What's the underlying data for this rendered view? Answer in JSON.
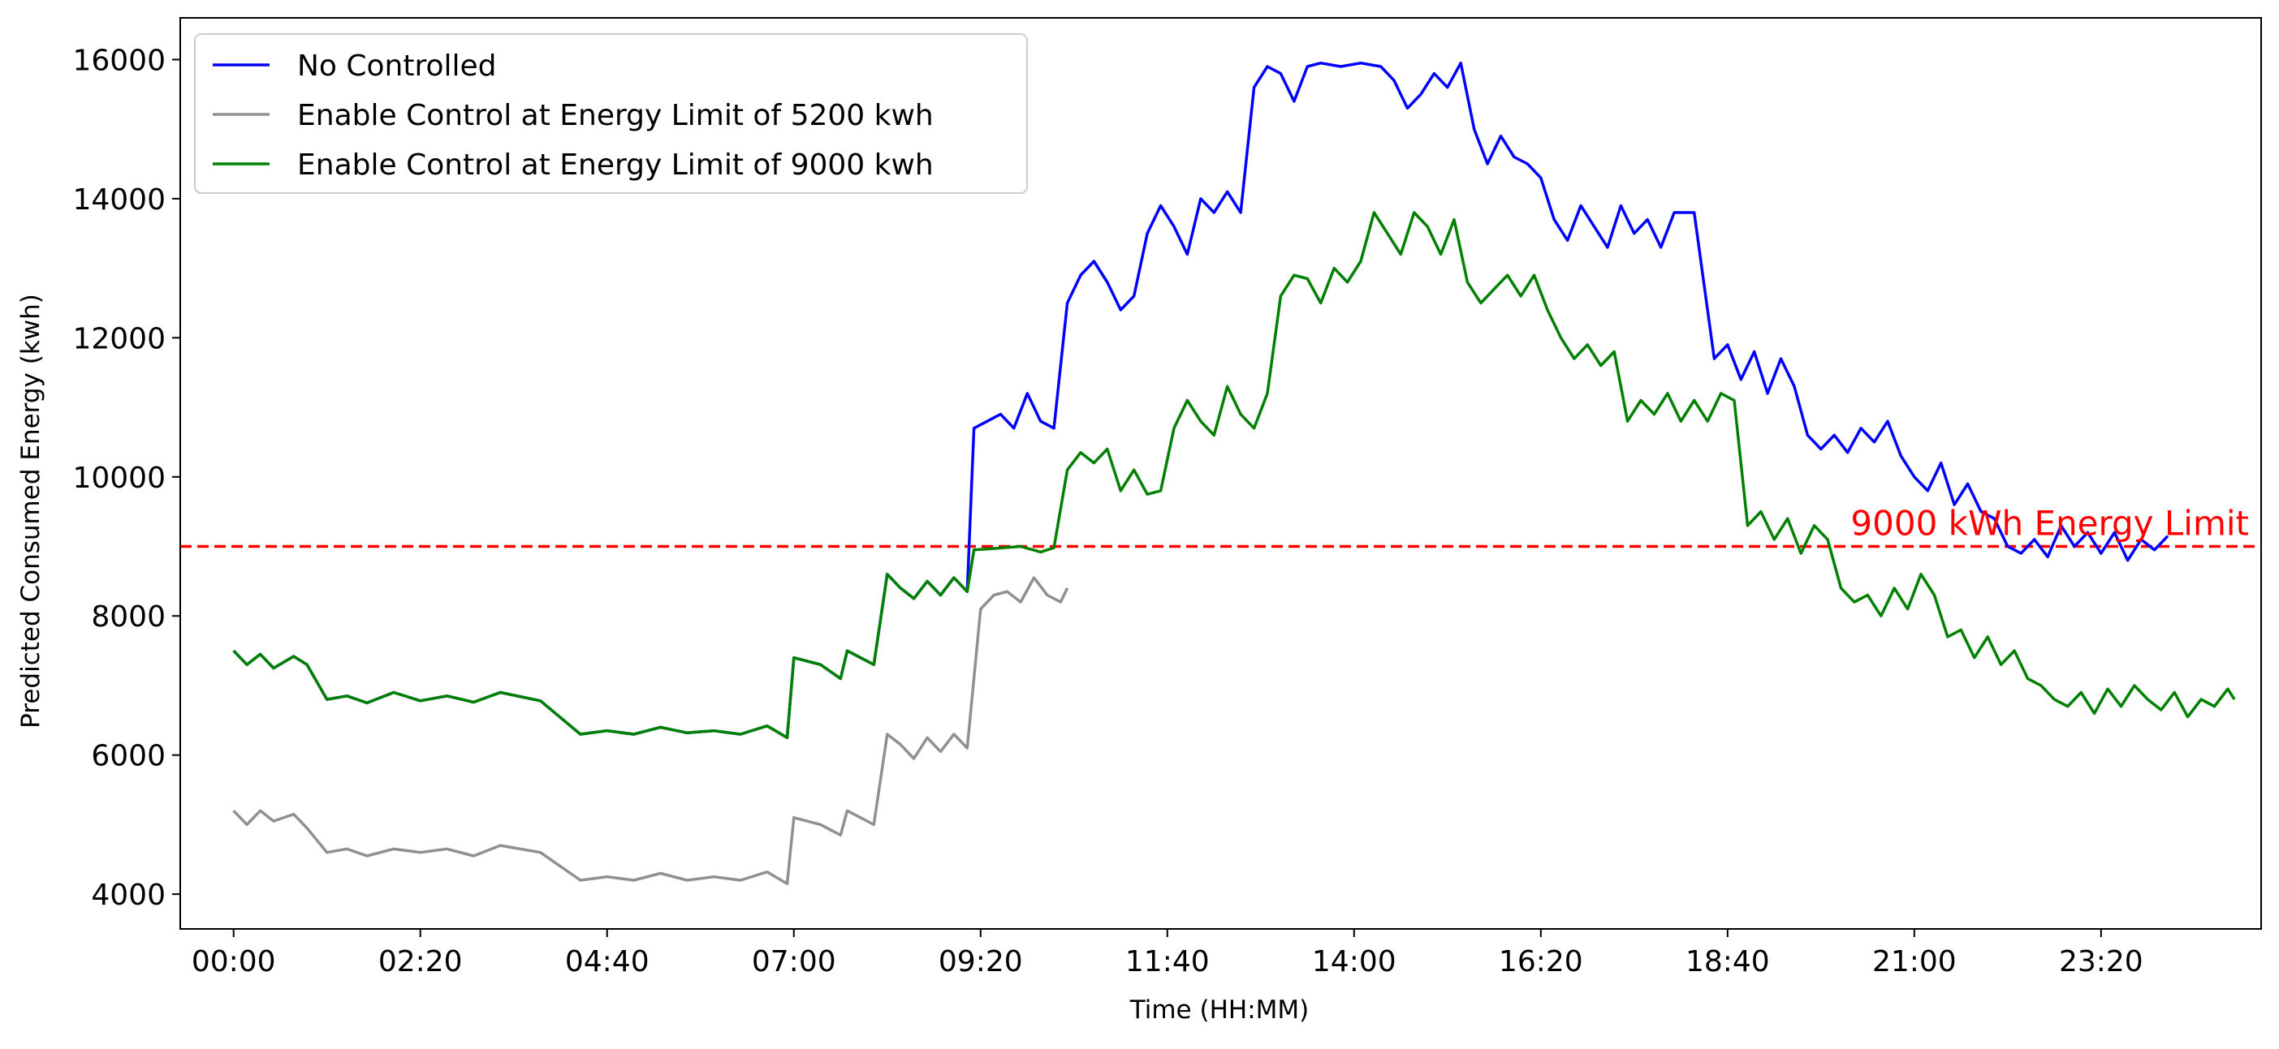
{
  "chart_data": {
    "type": "line",
    "title": "",
    "xlabel": "Time (HH:MM)",
    "ylabel": "Predicted Consumed Energy (kwh)",
    "xlim": [
      -40,
      1520
    ],
    "ylim": [
      3500,
      16600
    ],
    "grid": false,
    "legend_position": "top-left",
    "x_ticks": [
      {
        "value": 0,
        "label": "00:00"
      },
      {
        "value": 140,
        "label": "02:20"
      },
      {
        "value": 280,
        "label": "04:40"
      },
      {
        "value": 420,
        "label": "07:00"
      },
      {
        "value": 560,
        "label": "09:20"
      },
      {
        "value": 700,
        "label": "11:40"
      },
      {
        "value": 840,
        "label": "14:00"
      },
      {
        "value": 980,
        "label": "16:20"
      },
      {
        "value": 1120,
        "label": "18:40"
      },
      {
        "value": 1260,
        "label": "21:00"
      },
      {
        "value": 1400,
        "label": "23:20"
      }
    ],
    "y_ticks": [
      {
        "value": 4000,
        "label": "4000"
      },
      {
        "value": 6000,
        "label": "6000"
      },
      {
        "value": 8000,
        "label": "8000"
      },
      {
        "value": 10000,
        "label": "10000"
      },
      {
        "value": 12000,
        "label": "12000"
      },
      {
        "value": 14000,
        "label": "14000"
      },
      {
        "value": 16000,
        "label": "16000"
      }
    ],
    "limit_line": {
      "y": 9000,
      "color": "#ff0000",
      "style": "dashed",
      "label": "9000 kWh Energy Limit"
    },
    "series": [
      {
        "name": "No Controlled",
        "color": "#0000ff",
        "points": [
          [
            0,
            7500
          ],
          [
            10,
            7300
          ],
          [
            20,
            7450
          ],
          [
            30,
            7250
          ],
          [
            45,
            7420
          ],
          [
            55,
            7300
          ],
          [
            70,
            6800
          ],
          [
            85,
            6850
          ],
          [
            100,
            6750
          ],
          [
            120,
            6900
          ],
          [
            140,
            6780
          ],
          [
            160,
            6850
          ],
          [
            180,
            6760
          ],
          [
            200,
            6900
          ],
          [
            230,
            6780
          ],
          [
            260,
            6300
          ],
          [
            280,
            6350
          ],
          [
            300,
            6300
          ],
          [
            320,
            6400
          ],
          [
            340,
            6320
          ],
          [
            360,
            6350
          ],
          [
            380,
            6300
          ],
          [
            400,
            6420
          ],
          [
            415,
            6250
          ],
          [
            420,
            7400
          ],
          [
            440,
            7300
          ],
          [
            455,
            7100
          ],
          [
            460,
            7500
          ],
          [
            470,
            7400
          ],
          [
            480,
            7300
          ],
          [
            490,
            8600
          ],
          [
            500,
            8400
          ],
          [
            510,
            8250
          ],
          [
            520,
            8500
          ],
          [
            530,
            8300
          ],
          [
            540,
            8550
          ],
          [
            550,
            8350
          ],
          [
            555,
            10700
          ],
          [
            565,
            10800
          ],
          [
            575,
            10900
          ],
          [
            585,
            10700
          ],
          [
            595,
            11200
          ],
          [
            605,
            10800
          ],
          [
            615,
            10700
          ],
          [
            625,
            12500
          ],
          [
            635,
            12900
          ],
          [
            645,
            13100
          ],
          [
            655,
            12800
          ],
          [
            665,
            12400
          ],
          [
            675,
            12600
          ],
          [
            685,
            13500
          ],
          [
            695,
            13900
          ],
          [
            705,
            13600
          ],
          [
            715,
            13200
          ],
          [
            725,
            14000
          ],
          [
            735,
            13800
          ],
          [
            745,
            14100
          ],
          [
            755,
            13800
          ],
          [
            765,
            15600
          ],
          [
            775,
            15900
          ],
          [
            785,
            15800
          ],
          [
            795,
            15400
          ],
          [
            805,
            15900
          ],
          [
            815,
            15950
          ],
          [
            830,
            15900
          ],
          [
            845,
            15950
          ],
          [
            860,
            15900
          ],
          [
            870,
            15700
          ],
          [
            880,
            15300
          ],
          [
            890,
            15500
          ],
          [
            900,
            15800
          ],
          [
            910,
            15600
          ],
          [
            920,
            15950
          ],
          [
            930,
            15000
          ],
          [
            940,
            14500
          ],
          [
            950,
            14900
          ],
          [
            960,
            14600
          ],
          [
            970,
            14500
          ],
          [
            980,
            14300
          ],
          [
            990,
            13700
          ],
          [
            1000,
            13400
          ],
          [
            1010,
            13900
          ],
          [
            1020,
            13600
          ],
          [
            1030,
            13300
          ],
          [
            1040,
            13900
          ],
          [
            1050,
            13500
          ],
          [
            1060,
            13700
          ],
          [
            1070,
            13300
          ],
          [
            1080,
            13800
          ],
          [
            1095,
            13800
          ],
          [
            1110,
            11700
          ],
          [
            1120,
            11900
          ],
          [
            1130,
            11400
          ],
          [
            1140,
            11800
          ],
          [
            1150,
            11200
          ],
          [
            1160,
            11700
          ],
          [
            1170,
            11300
          ],
          [
            1180,
            10600
          ],
          [
            1190,
            10400
          ],
          [
            1200,
            10600
          ],
          [
            1210,
            10350
          ],
          [
            1220,
            10700
          ],
          [
            1230,
            10500
          ],
          [
            1240,
            10800
          ],
          [
            1250,
            10300
          ],
          [
            1260,
            10000
          ],
          [
            1270,
            9800
          ],
          [
            1280,
            10200
          ],
          [
            1290,
            9600
          ],
          [
            1300,
            9900
          ],
          [
            1310,
            9500
          ],
          [
            1320,
            9400
          ],
          [
            1330,
            9000
          ],
          [
            1340,
            8900
          ],
          [
            1350,
            9100
          ],
          [
            1360,
            8850
          ],
          [
            1370,
            9300
          ],
          [
            1380,
            9000
          ],
          [
            1390,
            9200
          ],
          [
            1400,
            8900
          ],
          [
            1410,
            9200
          ],
          [
            1420,
            8800
          ],
          [
            1430,
            9100
          ],
          [
            1440,
            8950
          ],
          [
            1450,
            9150
          ]
        ]
      },
      {
        "name": "Enable Control at Energy Limit of 5200 kwh",
        "color": "#909090",
        "points": [
          [
            0,
            5200
          ],
          [
            10,
            5000
          ],
          [
            20,
            5200
          ],
          [
            30,
            5050
          ],
          [
            45,
            5150
          ],
          [
            55,
            4950
          ],
          [
            70,
            4600
          ],
          [
            85,
            4650
          ],
          [
            100,
            4550
          ],
          [
            120,
            4650
          ],
          [
            140,
            4600
          ],
          [
            160,
            4650
          ],
          [
            180,
            4550
          ],
          [
            200,
            4700
          ],
          [
            230,
            4600
          ],
          [
            260,
            4200
          ],
          [
            280,
            4250
          ],
          [
            300,
            4200
          ],
          [
            320,
            4300
          ],
          [
            340,
            4200
          ],
          [
            360,
            4250
          ],
          [
            380,
            4200
          ],
          [
            400,
            4320
          ],
          [
            415,
            4150
          ],
          [
            420,
            5100
          ],
          [
            440,
            5000
          ],
          [
            455,
            4850
          ],
          [
            460,
            5200
          ],
          [
            470,
            5100
          ],
          [
            480,
            5000
          ],
          [
            490,
            6300
          ],
          [
            500,
            6150
          ],
          [
            510,
            5950
          ],
          [
            520,
            6250
          ],
          [
            530,
            6050
          ],
          [
            540,
            6300
          ],
          [
            550,
            6100
          ],
          [
            560,
            8100
          ],
          [
            570,
            8300
          ],
          [
            580,
            8350
          ],
          [
            590,
            8200
          ],
          [
            600,
            8550
          ],
          [
            610,
            8300
          ],
          [
            620,
            8200
          ],
          [
            625,
            8400
          ]
        ]
      },
      {
        "name": "Enable Control at Energy Limit of 9000 kwh",
        "color": "#008000",
        "points": [
          [
            0,
            7500
          ],
          [
            10,
            7300
          ],
          [
            20,
            7450
          ],
          [
            30,
            7250
          ],
          [
            45,
            7420
          ],
          [
            55,
            7300
          ],
          [
            70,
            6800
          ],
          [
            85,
            6850
          ],
          [
            100,
            6750
          ],
          [
            120,
            6900
          ],
          [
            140,
            6780
          ],
          [
            160,
            6850
          ],
          [
            180,
            6760
          ],
          [
            200,
            6900
          ],
          [
            230,
            6780
          ],
          [
            260,
            6300
          ],
          [
            280,
            6350
          ],
          [
            300,
            6300
          ],
          [
            320,
            6400
          ],
          [
            340,
            6320
          ],
          [
            360,
            6350
          ],
          [
            380,
            6300
          ],
          [
            400,
            6420
          ],
          [
            415,
            6250
          ],
          [
            420,
            7400
          ],
          [
            440,
            7300
          ],
          [
            455,
            7100
          ],
          [
            460,
            7500
          ],
          [
            470,
            7400
          ],
          [
            480,
            7300
          ],
          [
            490,
            8600
          ],
          [
            500,
            8400
          ],
          [
            510,
            8250
          ],
          [
            520,
            8500
          ],
          [
            530,
            8300
          ],
          [
            540,
            8550
          ],
          [
            550,
            8350
          ],
          [
            555,
            8950
          ],
          [
            570,
            8970
          ],
          [
            590,
            9000
          ],
          [
            605,
            8920
          ],
          [
            615,
            8980
          ],
          [
            625,
            10100
          ],
          [
            635,
            10350
          ],
          [
            645,
            10200
          ],
          [
            655,
            10400
          ],
          [
            665,
            9800
          ],
          [
            675,
            10100
          ],
          [
            685,
            9750
          ],
          [
            695,
            9800
          ],
          [
            705,
            10700
          ],
          [
            715,
            11100
          ],
          [
            725,
            10800
          ],
          [
            735,
            10600
          ],
          [
            745,
            11300
          ],
          [
            755,
            10900
          ],
          [
            765,
            10700
          ],
          [
            775,
            11200
          ],
          [
            785,
            12600
          ],
          [
            795,
            12900
          ],
          [
            805,
            12850
          ],
          [
            815,
            12500
          ],
          [
            825,
            13000
          ],
          [
            835,
            12800
          ],
          [
            845,
            13100
          ],
          [
            855,
            13800
          ],
          [
            865,
            13500
          ],
          [
            875,
            13200
          ],
          [
            885,
            13800
          ],
          [
            895,
            13600
          ],
          [
            905,
            13200
          ],
          [
            915,
            13700
          ],
          [
            925,
            12800
          ],
          [
            935,
            12500
          ],
          [
            945,
            12700
          ],
          [
            955,
            12900
          ],
          [
            965,
            12600
          ],
          [
            975,
            12900
          ],
          [
            985,
            12400
          ],
          [
            995,
            12000
          ],
          [
            1005,
            11700
          ],
          [
            1015,
            11900
          ],
          [
            1025,
            11600
          ],
          [
            1035,
            11800
          ],
          [
            1045,
            10800
          ],
          [
            1055,
            11100
          ],
          [
            1065,
            10900
          ],
          [
            1075,
            11200
          ],
          [
            1085,
            10800
          ],
          [
            1095,
            11100
          ],
          [
            1105,
            10800
          ],
          [
            1115,
            11200
          ],
          [
            1125,
            11100
          ],
          [
            1135,
            9300
          ],
          [
            1145,
            9500
          ],
          [
            1155,
            9100
          ],
          [
            1165,
            9400
          ],
          [
            1175,
            8900
          ],
          [
            1185,
            9300
          ],
          [
            1195,
            9100
          ],
          [
            1205,
            8400
          ],
          [
            1215,
            8200
          ],
          [
            1225,
            8300
          ],
          [
            1235,
            8000
          ],
          [
            1245,
            8400
          ],
          [
            1255,
            8100
          ],
          [
            1265,
            8600
          ],
          [
            1275,
            8300
          ],
          [
            1285,
            7700
          ],
          [
            1295,
            7800
          ],
          [
            1305,
            7400
          ],
          [
            1315,
            7700
          ],
          [
            1325,
            7300
          ],
          [
            1335,
            7500
          ],
          [
            1345,
            7100
          ],
          [
            1355,
            7000
          ],
          [
            1365,
            6800
          ],
          [
            1375,
            6700
          ],
          [
            1385,
            6900
          ],
          [
            1395,
            6600
          ],
          [
            1405,
            6950
          ],
          [
            1415,
            6700
          ],
          [
            1425,
            7000
          ],
          [
            1435,
            6800
          ],
          [
            1445,
            6650
          ],
          [
            1455,
            6900
          ],
          [
            1465,
            6550
          ],
          [
            1475,
            6800
          ],
          [
            1485,
            6700
          ],
          [
            1495,
            6950
          ],
          [
            1500,
            6800
          ]
        ]
      }
    ]
  }
}
